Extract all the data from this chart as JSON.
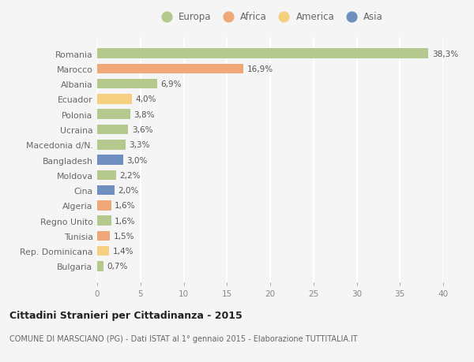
{
  "countries": [
    "Romania",
    "Marocco",
    "Albania",
    "Ecuador",
    "Polonia",
    "Ucraina",
    "Macedonia d/N.",
    "Bangladesh",
    "Moldova",
    "Cina",
    "Algeria",
    "Regno Unito",
    "Tunisia",
    "Rep. Dominicana",
    "Bulgaria"
  ],
  "values": [
    38.3,
    16.9,
    6.9,
    4.0,
    3.8,
    3.6,
    3.3,
    3.0,
    2.2,
    2.0,
    1.6,
    1.6,
    1.5,
    1.4,
    0.7
  ],
  "labels": [
    "38,3%",
    "16,9%",
    "6,9%",
    "4,0%",
    "3,8%",
    "3,6%",
    "3,3%",
    "3,0%",
    "2,2%",
    "2,0%",
    "1,6%",
    "1,6%",
    "1,5%",
    "1,4%",
    "0,7%"
  ],
  "regions": [
    "Europa",
    "Africa",
    "Europa",
    "America",
    "Europa",
    "Europa",
    "Europa",
    "Asia",
    "Europa",
    "Asia",
    "Africa",
    "Europa",
    "Africa",
    "America",
    "Europa"
  ],
  "region_colors": {
    "Europa": "#b5c98e",
    "Africa": "#f0a878",
    "America": "#f5d080",
    "Asia": "#6e8fc0"
  },
  "legend_order": [
    "Europa",
    "Africa",
    "America",
    "Asia"
  ],
  "title": "Cittadini Stranieri per Cittadinanza - 2015",
  "subtitle": "COMUNE DI MARSCIANO (PG) - Dati ISTAT al 1° gennaio 2015 - Elaborazione TUTTITALIA.IT",
  "xlim": [
    0,
    40
  ],
  "xticks": [
    0,
    5,
    10,
    15,
    20,
    25,
    30,
    35,
    40
  ],
  "background_color": "#f5f5f5",
  "grid_color": "#ffffff",
  "bar_height": 0.65
}
